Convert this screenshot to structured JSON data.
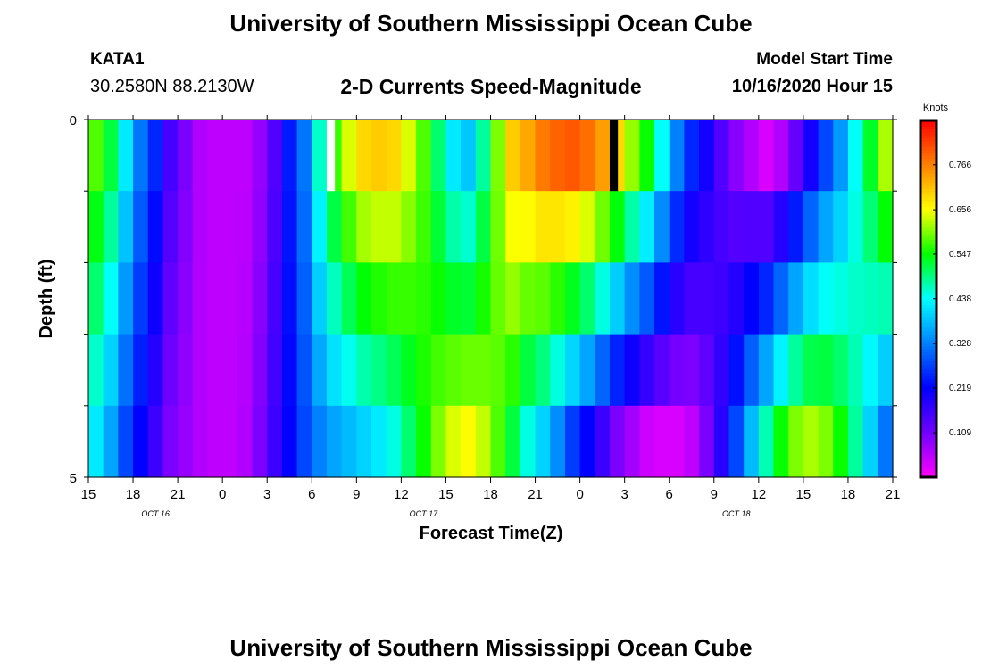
{
  "header": {
    "title": "University of Southern Mississippi Ocean Cube",
    "station_id": "KATA1",
    "station_coords": "30.2580N 88.2130W",
    "model_start_label": "Model Start Time",
    "model_start_value": "10/16/2020 Hour 15"
  },
  "footer": {
    "title": "University of Southern Mississippi Ocean Cube"
  },
  "chart_data": {
    "type": "heatmap",
    "title": "2-D Currents Speed-Magnitude",
    "xlabel": "Forecast Time(Z)",
    "ylabel": "Depth (ft)",
    "ylim": [
      0,
      5
    ],
    "y_ticks": [
      "0",
      "5"
    ],
    "x_tick_labels": [
      "15",
      "18",
      "21",
      "0",
      "3",
      "6",
      "9",
      "12",
      "15",
      "18",
      "21",
      "0",
      "3",
      "6",
      "9",
      "12",
      "15",
      "18",
      "21"
    ],
    "date_labels": [
      {
        "label": "OCT 16",
        "after_tick": 1
      },
      {
        "label": "OCT 17",
        "after_tick": 7
      },
      {
        "label": "OCT 18",
        "after_tick": 14
      }
    ],
    "units": "Knots",
    "colorbar_ticks": [
      "0.766",
      "0.656",
      "0.547",
      "0.438",
      "0.328",
      "0.219",
      "0.109"
    ],
    "colorbar_range": [
      0,
      0.875
    ],
    "colorscale": [
      "#ff00ff",
      "#7000ff",
      "#0000ff",
      "#0080ff",
      "#00ffff",
      "#00ff00",
      "#ffff00",
      "#ff8000",
      "#ff0000"
    ],
    "time_steps": 54,
    "depth_layers": 5,
    "surface_profile": [
      0.58,
      0.52,
      0.42,
      0.32,
      0.25,
      0.15,
      0.1,
      0.06,
      0.05,
      0.05,
      0.05,
      0.08,
      0.14,
      0.24,
      0.32,
      0.46,
      0.57,
      0.64,
      0.69,
      0.7,
      0.69,
      0.64,
      0.58,
      0.5,
      0.42,
      0.39,
      0.48,
      0.6,
      0.7,
      0.73,
      0.77,
      0.79,
      0.8,
      0.78,
      0.74,
      0.69,
      0.61,
      0.55,
      0.44,
      0.33,
      0.25,
      0.2,
      0.14,
      0.09,
      0.06,
      0.03,
      0.06,
      0.12,
      0.2,
      0.28,
      0.35,
      0.44,
      0.53,
      0.62
    ],
    "bottom_profile": [
      0.42,
      0.36,
      0.28,
      0.22,
      0.16,
      0.1,
      0.08,
      0.06,
      0.05,
      0.05,
      0.06,
      0.1,
      0.16,
      0.22,
      0.28,
      0.33,
      0.36,
      0.38,
      0.4,
      0.42,
      0.45,
      0.5,
      0.55,
      0.6,
      0.64,
      0.66,
      0.63,
      0.58,
      0.52,
      0.45,
      0.4,
      0.34,
      0.27,
      0.22,
      0.16,
      0.1,
      0.07,
      0.04,
      0.03,
      0.03,
      0.05,
      0.1,
      0.18,
      0.28,
      0.38,
      0.47,
      0.55,
      0.6,
      0.62,
      0.6,
      0.55,
      0.48,
      0.4,
      0.32
    ],
    "missing_markers": [
      {
        "time_index": 16,
        "depth_layer": 0,
        "fill": "white"
      },
      {
        "time_index": 35,
        "depth_layer": 0,
        "fill": "black"
      }
    ]
  }
}
